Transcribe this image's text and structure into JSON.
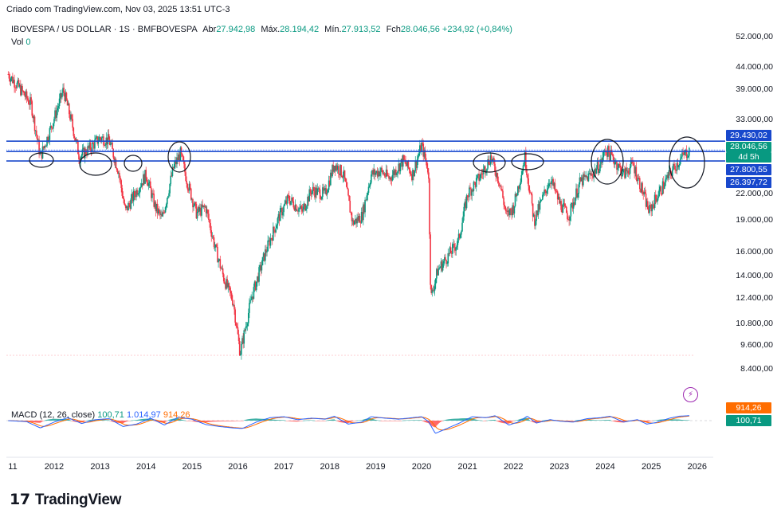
{
  "header": {
    "created": "Criado com TradingView.com, Nov 03, 2025 13:51 UTC-3"
  },
  "legend": {
    "symbol": "IBOVESPA / US DOLLAR · 1S · BMFBOVESPA",
    "open_label": "Abr",
    "open": "27.942,98",
    "high_label": "Máx.",
    "high": "28.194,42",
    "low_label": "Mín.",
    "low": "27.913,52",
    "close_label": "Fch",
    "close": "28.046,56",
    "change": "+234,92 (+0,84%)"
  },
  "volume": {
    "label": "Vol",
    "value": "0"
  },
  "macd": {
    "label": "MACD (12, 26, close)",
    "hist": "100,71",
    "macd": "1.014,97",
    "signal": "914,26",
    "tag_signal": "914,26",
    "tag_hist": "100,71"
  },
  "price_tags": {
    "line_high": "29.430,02",
    "last": "28.046,56",
    "countdown": "4d 5h",
    "line_mid": "27.800,55",
    "line_low": "26.397,72"
  },
  "colors": {
    "up": "#089981",
    "down": "#f23645",
    "line": "#1848cc",
    "macd": "#2962ff",
    "signal": "#ff6d00"
  },
  "chart_data": {
    "type": "candlestick",
    "title": "IBOVESPA / US DOLLAR · 1S · BMFBOVESPA",
    "y_ticks": [
      "52.000,00",
      "44.000,00",
      "39.000,00",
      "33.000,00",
      "22.000,00",
      "19.000,00",
      "16.000,00",
      "14.000,00",
      "12.400,00",
      "10.800,00",
      "9.600,00",
      "8.400,00"
    ],
    "y_tick_values": [
      52000,
      44000,
      39000,
      33000,
      22000,
      19000,
      16000,
      14000,
      12400,
      10800,
      9600,
      8400
    ],
    "x_ticks": [
      "11",
      "2012",
      "2013",
      "2014",
      "2015",
      "2016",
      "2017",
      "2018",
      "2019",
      "2020",
      "2021",
      "2022",
      "2023",
      "2024",
      "2025",
      "2026"
    ],
    "x_tick_years": [
      2011,
      2012,
      2013,
      2014,
      2015,
      2016,
      2017,
      2018,
      2019,
      2020,
      2021,
      2022,
      2023,
      2024,
      2025,
      2026
    ],
    "y_scale": "log",
    "ylim": [
      7600,
      56000
    ],
    "x_range_years": [
      2010.96,
      2026.35
    ],
    "horizontal_lines": [
      29430.02,
      28046.56,
      27800.55,
      26397.72
    ],
    "close_path": [
      [
        2011.0,
        42500
      ],
      [
        2011.2,
        40000
      ],
      [
        2011.5,
        36000
      ],
      [
        2011.7,
        27000
      ],
      [
        2011.9,
        31000
      ],
      [
        2012.1,
        36000
      ],
      [
        2012.2,
        39000
      ],
      [
        2012.4,
        32000
      ],
      [
        2012.55,
        27000
      ],
      [
        2012.8,
        28500
      ],
      [
        2013.0,
        30000
      ],
      [
        2013.2,
        29500
      ],
      [
        2013.4,
        25000
      ],
      [
        2013.55,
        20000
      ],
      [
        2013.8,
        22500
      ],
      [
        2014.0,
        24500
      ],
      [
        2014.2,
        20500
      ],
      [
        2014.35,
        19200
      ],
      [
        2014.6,
        25500
      ],
      [
        2014.75,
        27500
      ],
      [
        2014.9,
        23500
      ],
      [
        2015.1,
        19800
      ],
      [
        2015.3,
        20500
      ],
      [
        2015.5,
        16500
      ],
      [
        2015.7,
        13800
      ],
      [
        2015.9,
        12200
      ],
      [
        2016.05,
        9200
      ],
      [
        2016.3,
        12500
      ],
      [
        2016.6,
        16000
      ],
      [
        2016.9,
        19500
      ],
      [
        2017.1,
        21500
      ],
      [
        2017.4,
        20000
      ],
      [
        2017.6,
        22500
      ],
      [
        2017.9,
        22000
      ],
      [
        2018.1,
        26000
      ],
      [
        2018.3,
        24500
      ],
      [
        2018.5,
        18800
      ],
      [
        2018.7,
        19500
      ],
      [
        2018.9,
        24500
      ],
      [
        2019.1,
        25000
      ],
      [
        2019.3,
        24000
      ],
      [
        2019.6,
        26500
      ],
      [
        2019.8,
        24500
      ],
      [
        2020.0,
        28800
      ],
      [
        2020.15,
        25000
      ],
      [
        2020.2,
        12400
      ],
      [
        2020.35,
        14500
      ],
      [
        2020.6,
        15800
      ],
      [
        2020.8,
        17000
      ],
      [
        2021.0,
        22000
      ],
      [
        2021.3,
        24500
      ],
      [
        2021.5,
        27000
      ],
      [
        2021.7,
        23500
      ],
      [
        2021.85,
        19500
      ],
      [
        2022.0,
        20500
      ],
      [
        2022.25,
        27000
      ],
      [
        2022.45,
        19000
      ],
      [
        2022.6,
        21000
      ],
      [
        2022.8,
        24000
      ],
      [
        2023.0,
        21000
      ],
      [
        2023.2,
        19500
      ],
      [
        2023.45,
        23500
      ],
      [
        2023.7,
        24500
      ],
      [
        2023.9,
        26000
      ],
      [
        2024.0,
        28200
      ],
      [
        2024.2,
        26500
      ],
      [
        2024.4,
        24500
      ],
      [
        2024.6,
        26000
      ],
      [
        2024.8,
        22500
      ],
      [
        2024.95,
        20000
      ],
      [
        2025.1,
        21500
      ],
      [
        2025.3,
        23500
      ],
      [
        2025.5,
        25500
      ],
      [
        2025.7,
        27200
      ],
      [
        2025.84,
        28046.56
      ]
    ],
    "macd_path": [
      [
        2011.0,
        0
      ],
      [
        2011.4,
        -200
      ],
      [
        2011.7,
        -1500
      ],
      [
        2012.0,
        -300
      ],
      [
        2012.3,
        600
      ],
      [
        2012.6,
        -600
      ],
      [
        2012.9,
        200
      ],
      [
        2013.2,
        400
      ],
      [
        2013.5,
        -1200
      ],
      [
        2013.8,
        -700
      ],
      [
        2014.1,
        500
      ],
      [
        2014.4,
        -900
      ],
      [
        2014.7,
        700
      ],
      [
        2015.0,
        300
      ],
      [
        2015.3,
        -800
      ],
      [
        2015.6,
        -1200
      ],
      [
        2015.9,
        -1500
      ],
      [
        2016.1,
        -1600
      ],
      [
        2016.4,
        -300
      ],
      [
        2016.7,
        600
      ],
      [
        2017.0,
        800
      ],
      [
        2017.3,
        200
      ],
      [
        2017.6,
        500
      ],
      [
        2017.9,
        300
      ],
      [
        2018.1,
        900
      ],
      [
        2018.4,
        -700
      ],
      [
        2018.7,
        -300
      ],
      [
        2018.9,
        800
      ],
      [
        2019.2,
        500
      ],
      [
        2019.5,
        300
      ],
      [
        2019.8,
        600
      ],
      [
        2020.0,
        800
      ],
      [
        2020.15,
        -200
      ],
      [
        2020.3,
        -2600
      ],
      [
        2020.5,
        -1800
      ],
      [
        2020.8,
        -600
      ],
      [
        2021.1,
        800
      ],
      [
        2021.4,
        600
      ],
      [
        2021.6,
        1000
      ],
      [
        2021.9,
        -900
      ],
      [
        2022.1,
        -300
      ],
      [
        2022.3,
        900
      ],
      [
        2022.5,
        -500
      ],
      [
        2022.8,
        200
      ],
      [
        2023.0,
        -100
      ],
      [
        2023.3,
        -300
      ],
      [
        2023.6,
        400
      ],
      [
        2023.9,
        600
      ],
      [
        2024.1,
        900
      ],
      [
        2024.4,
        -300
      ],
      [
        2024.7,
        200
      ],
      [
        2024.9,
        -700
      ],
      [
        2025.1,
        -400
      ],
      [
        2025.4,
        500
      ],
      [
        2025.6,
        900
      ],
      [
        2025.84,
        1014.97
      ]
    ]
  }
}
